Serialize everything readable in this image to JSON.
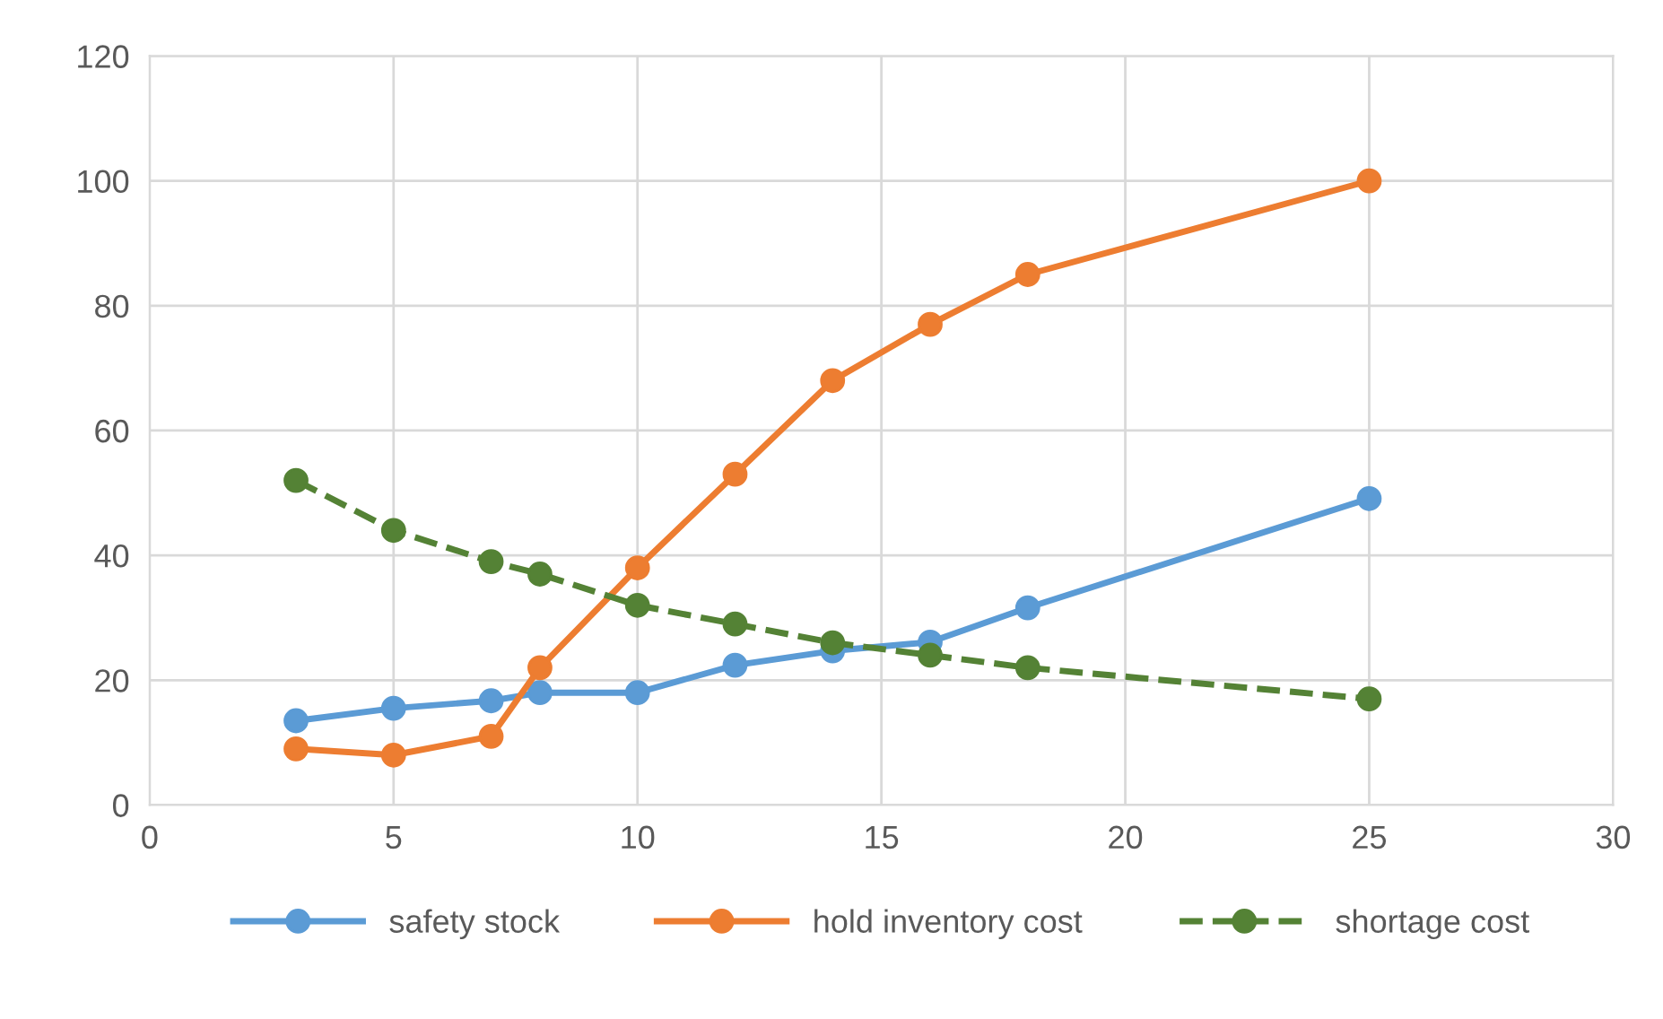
{
  "chart_data": {
    "type": "line",
    "x": [
      3,
      5,
      7,
      8,
      10,
      12,
      14,
      16,
      18,
      25
    ],
    "series": [
      {
        "name": "safety stock",
        "color": "#5b9bd5",
        "values": [
          13.5,
          15.5,
          16.7,
          18,
          18,
          22.4,
          24.7,
          26.1,
          31.6,
          49.1
        ],
        "line_style": "solid"
      },
      {
        "name": "hold inventory cost",
        "color": "#ed7d31",
        "values": [
          9,
          8,
          11,
          22,
          38,
          53,
          68,
          77,
          85,
          100
        ],
        "line_style": "solid"
      },
      {
        "name": "shortage cost",
        "color": "#548235",
        "values": [
          52,
          44,
          39,
          37,
          32,
          29,
          26,
          24,
          22,
          17
        ],
        "line_style": "dashed"
      }
    ],
    "xlim": [
      0,
      30
    ],
    "xticks": [
      0,
      5,
      10,
      15,
      20,
      25,
      30
    ],
    "ylim": [
      0,
      120
    ],
    "yticks": [
      0,
      20,
      40,
      60,
      80,
      100,
      120
    ],
    "grid": true,
    "legend": "bottom",
    "marker": "circle"
  }
}
